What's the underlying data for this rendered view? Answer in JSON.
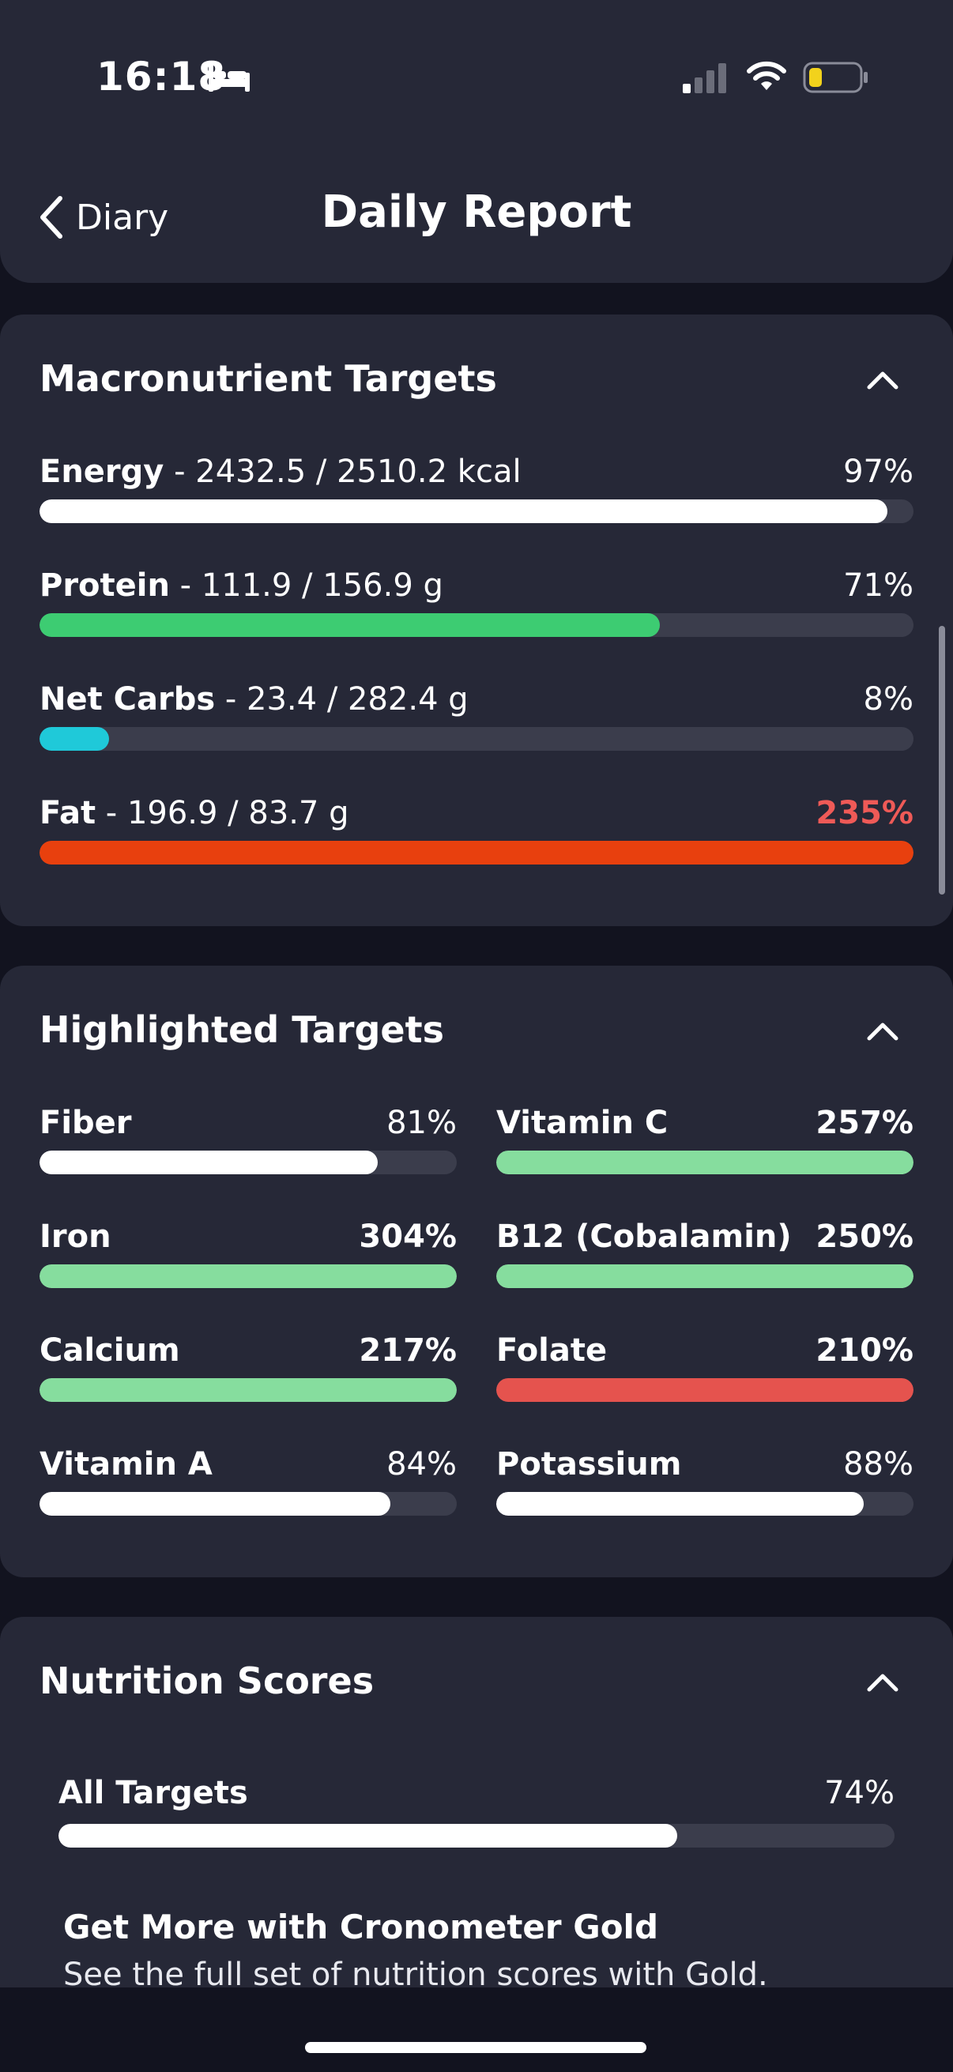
{
  "status_bar": {
    "time": "16:18"
  },
  "nav": {
    "back_label": "Diary",
    "title": "Daily Report"
  },
  "macros": {
    "title": "Macronutrient Targets",
    "items": [
      {
        "name": "Energy",
        "detail": " - 2432.5 / 2510.2 kcal",
        "percent_text": "97%",
        "fill": 0.97,
        "color": "#ffffff",
        "pct_color": "#ffffff"
      },
      {
        "name": "Protein",
        "detail": " - 111.9 / 156.9 g",
        "percent_text": "71%",
        "fill": 0.71,
        "color": "#3dcc72",
        "pct_color": "#ffffff"
      },
      {
        "name": "Net Carbs",
        "detail": " - 23.4 / 282.4 g",
        "percent_text": "8%",
        "fill": 0.08,
        "color": "#1fc9d9",
        "pct_color": "#ffffff"
      },
      {
        "name": "Fat",
        "detail": " - 196.9 / 83.7 g",
        "percent_text": "235%",
        "fill": 1.0,
        "color": "#e8400e",
        "pct_color": "#ef5a57"
      }
    ]
  },
  "highlighted": {
    "title": "Highlighted Targets",
    "items": [
      {
        "name": "Fiber",
        "percent_text": "81%",
        "fill": 0.81,
        "color": "#ffffff",
        "bold_pct": false
      },
      {
        "name": "Vitamin C",
        "percent_text": "257%",
        "fill": 1.0,
        "color": "#86dd9e",
        "bold_pct": true
      },
      {
        "name": "Iron",
        "percent_text": "304%",
        "fill": 1.0,
        "color": "#86dd9e",
        "bold_pct": true
      },
      {
        "name": "B12 (Cobalamin)",
        "percent_text": "250%",
        "fill": 1.0,
        "color": "#86dd9e",
        "bold_pct": true
      },
      {
        "name": "Calcium",
        "percent_text": "217%",
        "fill": 1.0,
        "color": "#86dd9e",
        "bold_pct": true
      },
      {
        "name": "Folate",
        "percent_text": "210%",
        "fill": 1.0,
        "color": "#e5534e",
        "bold_pct": true
      },
      {
        "name": "Vitamin A",
        "percent_text": "84%",
        "fill": 0.84,
        "color": "#ffffff",
        "bold_pct": false
      },
      {
        "name": "Potassium",
        "percent_text": "88%",
        "fill": 0.88,
        "color": "#ffffff",
        "bold_pct": false
      }
    ]
  },
  "scores": {
    "title": "Nutrition Scores",
    "all_targets": {
      "name": "All Targets",
      "percent_text": "74%",
      "fill": 0.74,
      "color": "#ffffff"
    },
    "promo_title": "Get More with Cronometer Gold",
    "promo_sub": "See the full set of nutrition scores with Gold."
  },
  "colors": {
    "background": "#12131f",
    "card": "#262837",
    "track": "#3b3d4c"
  },
  "icons": [
    "bed-icon",
    "cellular-signal-icon",
    "wifi-icon",
    "battery-icon",
    "back-chevron-icon",
    "chevron-up-icon"
  ]
}
